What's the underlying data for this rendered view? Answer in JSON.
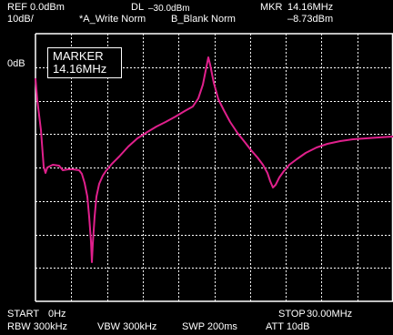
{
  "header": {
    "ref_label": "REF",
    "ref_value": "0.0dBm",
    "dl_label": "DL",
    "dl_value": "–30.0dBm",
    "mkr_label": "MKR",
    "mkr_freq": "14.16MHz",
    "scale": "10dB/",
    "trace_a": "*A_Write Norm",
    "trace_b": "B_Blank Norm",
    "mkr_level": "–8.73dBm"
  },
  "display": {
    "ref_level_label": "0dB",
    "marker_title": "MARKER",
    "marker_freq": "14.16MHz",
    "trace_color": "#e0208c",
    "grid_color": "#ffffff"
  },
  "footer": {
    "start_label": "START",
    "start_value": "0Hz",
    "stop_label": "STOP",
    "stop_value": "30.00MHz",
    "rbw": "RBW   300kHz",
    "vbw": "VBW   300kHz",
    "swp": "SWP   200ms",
    "att": "ATT   10dB"
  }
}
